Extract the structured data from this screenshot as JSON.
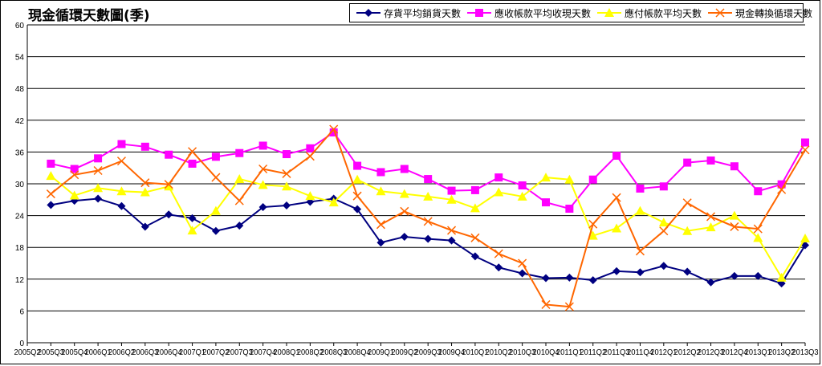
{
  "chart_data": {
    "type": "line",
    "title": "現金循環天數圖(季)",
    "ylim": [
      0,
      60
    ],
    "yticks": [
      0,
      6,
      12,
      18,
      24,
      30,
      36,
      42,
      48,
      54,
      60
    ],
    "grid": true,
    "legend_position": "top-right",
    "categories": [
      "2005Q2",
      "2005Q3",
      "2005Q4",
      "2006Q1",
      "2006Q2",
      "2006Q3",
      "2006Q4",
      "2007Q1",
      "2007Q2",
      "2007Q3",
      "2007Q4",
      "2008Q1",
      "2008Q2",
      "2008Q3",
      "2008Q4",
      "2009Q1",
      "2009Q2",
      "2009Q3",
      "2009Q4",
      "2010Q1",
      "2010Q2",
      "2010Q3",
      "2010Q4",
      "2011Q1",
      "2011Q2",
      "2011Q3",
      "2011Q4",
      "2012Q1",
      "2012Q2",
      "2012Q3",
      "2012Q4",
      "2013Q1",
      "2013Q2",
      "2013Q3"
    ],
    "series": [
      {
        "name": "存貨平均銷貨天數",
        "color": "#000080",
        "marker": "diamond",
        "values": [
          null,
          26,
          26.8,
          27.2,
          25.8,
          21.9,
          24.2,
          23.5,
          21.1,
          22.1,
          25.6,
          25.9,
          26.6,
          27.2,
          25.2,
          18.9,
          20,
          19.6,
          19.3,
          16.3,
          14.2,
          13.1,
          12.2,
          12.3,
          11.8,
          13.5,
          13.3,
          14.5,
          13.4,
          11.4,
          12.6,
          12.6,
          11.2,
          18.4
        ]
      },
      {
        "name": "應收帳款平均收現天數",
        "color": "#ff00ff",
        "marker": "square",
        "values": [
          null,
          33.8,
          32.8,
          34.8,
          37.5,
          37,
          35.5,
          33.8,
          35.1,
          35.8,
          37.2,
          35.6,
          36.7,
          39.7,
          33.4,
          32.2,
          32.8,
          30.9,
          28.7,
          28.8,
          31.2,
          29.7,
          26.5,
          25.3,
          30.8,
          35.3,
          29.1,
          29.5,
          34,
          34.4,
          33.3,
          28.6,
          29.9,
          37.8
        ]
      },
      {
        "name": "應付帳款平均天數",
        "color": "#ffff00",
        "marker": "triangle",
        "values": [
          null,
          31.5,
          27.8,
          29.2,
          28.6,
          28.4,
          29.5,
          21.2,
          24.9,
          30.9,
          29.8,
          29.5,
          27.7,
          26.5,
          30.8,
          28.6,
          28.1,
          27.6,
          27,
          25.4,
          28.4,
          27.6,
          31.2,
          30.8,
          20.2,
          21.6,
          24.9,
          22.7,
          21.1,
          21.8,
          24,
          19.8,
          12.3,
          19.7
        ]
      },
      {
        "name": "現金轉換循環天數",
        "color": "#ff6600",
        "marker": "x",
        "values": [
          null,
          28.1,
          31.7,
          32.5,
          34.3,
          30.2,
          29.9,
          36.1,
          31.2,
          26.8,
          32.8,
          31.9,
          35.2,
          40.3,
          27.7,
          22.3,
          24.8,
          22.9,
          21.2,
          19.8,
          16.8,
          15,
          7.2,
          6.8,
          22.4,
          27.4,
          17.3,
          21.1,
          26.4,
          23.8,
          21.9,
          21.5,
          28.9,
          36.4
        ]
      }
    ]
  }
}
